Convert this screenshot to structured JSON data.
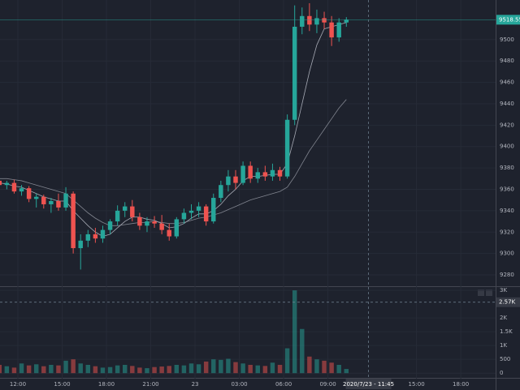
{
  "chart_data": {
    "type": "candlestick",
    "up_color": "#26a69a",
    "down_color": "#ef5350",
    "x": [
      10.75,
      11.25,
      11.75,
      12.25,
      12.75,
      13.25,
      13.75,
      14.25,
      14.75,
      15.25,
      15.75,
      16.25,
      16.75,
      17.25,
      17.75,
      18.25,
      18.75,
      19.25,
      19.75,
      20.25,
      20.75,
      21.25,
      21.75,
      22.25,
      22.75,
      23.25,
      23.75,
      24.25,
      24.75,
      25.25,
      25.75,
      26.25,
      26.75,
      27.25,
      27.75,
      28.25,
      28.75,
      29.25,
      29.75,
      30.25,
      30.75,
      31.25,
      31.75,
      32.25,
      32.75,
      33.25,
      33.75,
      34.25
    ],
    "candles": [
      [
        9368,
        9371,
        9362,
        9364
      ],
      [
        9364,
        9368,
        9360,
        9366
      ],
      [
        9366,
        9369,
        9356,
        9358
      ],
      [
        9358,
        9364,
        9354,
        9361
      ],
      [
        9361,
        9363,
        9348,
        9351
      ],
      [
        9351,
        9356,
        9343,
        9353
      ],
      [
        9353,
        9355,
        9342,
        9346
      ],
      [
        9346,
        9352,
        9338,
        9349
      ],
      [
        9349,
        9356,
        9340,
        9343
      ],
      [
        9343,
        9362,
        9340,
        9356
      ],
      [
        9356,
        9358,
        9300,
        9305
      ],
      [
        9305,
        9318,
        9285,
        9312
      ],
      [
        9312,
        9322,
        9306,
        9318
      ],
      [
        9318,
        9324,
        9310,
        9314
      ],
      [
        9314,
        9326,
        9310,
        9322
      ],
      [
        9322,
        9332,
        9318,
        9330
      ],
      [
        9330,
        9345,
        9326,
        9340
      ],
      [
        9340,
        9348,
        9334,
        9344
      ],
      [
        9344,
        9350,
        9330,
        9334
      ],
      [
        9334,
        9338,
        9322,
        9326
      ],
      [
        9326,
        9334,
        9320,
        9330
      ],
      [
        9330,
        9335,
        9324,
        9328
      ],
      [
        9328,
        9336,
        9318,
        9322
      ],
      [
        9322,
        9328,
        9312,
        9316
      ],
      [
        9316,
        9334,
        9314,
        9332
      ],
      [
        9332,
        9342,
        9328,
        9338
      ],
      [
        9338,
        9346,
        9332,
        9340
      ],
      [
        9340,
        9348,
        9334,
        9344
      ],
      [
        9344,
        9346,
        9326,
        9330
      ],
      [
        9330,
        9356,
        9328,
        9352
      ],
      [
        9352,
        9368,
        9348,
        9364
      ],
      [
        9364,
        9378,
        9358,
        9372
      ],
      [
        9372,
        9378,
        9360,
        9366
      ],
      [
        9366,
        9386,
        9364,
        9382
      ],
      [
        9382,
        9386,
        9366,
        9370
      ],
      [
        9370,
        9380,
        9366,
        9376
      ],
      [
        9376,
        9382,
        9368,
        9372
      ],
      [
        9372,
        9384,
        9368,
        9378
      ],
      [
        9378,
        9381,
        9368,
        9372
      ],
      [
        9372,
        9430,
        9370,
        9425
      ],
      [
        9425,
        9532,
        9420,
        9512
      ],
      [
        9512,
        9530,
        9505,
        9522
      ],
      [
        9522,
        9534,
        9508,
        9514
      ],
      [
        9514,
        9528,
        9506,
        9520
      ],
      [
        9520,
        9526,
        9510,
        9516
      ],
      [
        9516,
        9522,
        9494,
        9502
      ],
      [
        9502,
        9520,
        9498,
        9516
      ],
      [
        9516,
        9521,
        9512,
        9518.55
      ]
    ],
    "volume": [
      300,
      250,
      200,
      350,
      280,
      320,
      250,
      300,
      280,
      450,
      500,
      350,
      300,
      250,
      200,
      220,
      280,
      300,
      260,
      200,
      180,
      220,
      240,
      260,
      300,
      280,
      350,
      320,
      420,
      500,
      480,
      520,
      400,
      350,
      300,
      280,
      260,
      380,
      300,
      900,
      3000,
      1600,
      600,
      500,
      450,
      380,
      300,
      150
    ],
    "moving_averages": [
      {
        "color": "#c8ccd6",
        "values": [
          9366,
          9365,
          9363,
          9362,
          9359,
          9356,
          9353,
          9351,
          9349,
          9349,
          9340,
          9333,
          9326,
          9320,
          9316,
          9318,
          9324,
          9330,
          9334,
          9334,
          9332,
          9331,
          9328,
          9324,
          9325,
          9328,
          9333,
          9337,
          9337,
          9340,
          9346,
          9354,
          9360,
          9368,
          9372,
          9372,
          9373,
          9374,
          9374,
          9384,
          9410,
          9440,
          9470,
          9495,
          9510,
          9512,
          9514,
          9516
        ]
      },
      {
        "color": "#9a9ea8",
        "values": [
          9370,
          9370,
          9369,
          9368,
          9366,
          9364,
          9362,
          9360,
          9358,
          9356,
          9350,
          9344,
          9338,
          9333,
          9329,
          9326,
          9326,
          9327,
          9328,
          9329,
          9329,
          9330,
          9329,
          9328,
          9328,
          9329,
          9331,
          9333,
          9334,
          9336,
          9338,
          9341,
          9344,
          9347,
          9350,
          9352,
          9354,
          9356,
          9358,
          9362,
          9372,
          9384,
          9396,
          9406,
          9416,
          9426,
          9436,
          9444
        ]
      }
    ],
    "xlim": [
      10.79,
      44.36
    ],
    "xticks": [
      {
        "value": 12,
        "label": "12:00"
      },
      {
        "value": 15,
        "label": "15:00"
      },
      {
        "value": 18,
        "label": "18:00"
      },
      {
        "value": 21,
        "label": "21:00"
      },
      {
        "value": 24,
        "label": "23"
      },
      {
        "value": 27,
        "label": "03:00"
      },
      {
        "value": 30,
        "label": "06:00"
      },
      {
        "value": 33,
        "label": "09:00"
      },
      {
        "value": 39,
        "label": "15:00"
      },
      {
        "value": 42,
        "label": "18:00"
      }
    ],
    "ylim": [
      9269.4,
      9537
    ],
    "yticks": [
      9280,
      9300,
      9320,
      9340,
      9360,
      9380,
      9400,
      9420,
      9440,
      9460,
      9480,
      9500
    ],
    "volume_lim": [
      -200,
      3150
    ],
    "volume_ticks": [
      0,
      500,
      {
        "value": 1000,
        "label": "1K"
      },
      {
        "value": 1500,
        "label": "1.5K"
      },
      {
        "value": 2000,
        "label": "2K"
      },
      {
        "value": 3000,
        "label": "3K"
      }
    ],
    "last_price": 9518.55,
    "crosshair": {
      "x": 35.75,
      "x_label": "2020/7/23 - 11:45",
      "volume": 2570,
      "volume_label": "2.57K"
    },
    "grid": true
  }
}
